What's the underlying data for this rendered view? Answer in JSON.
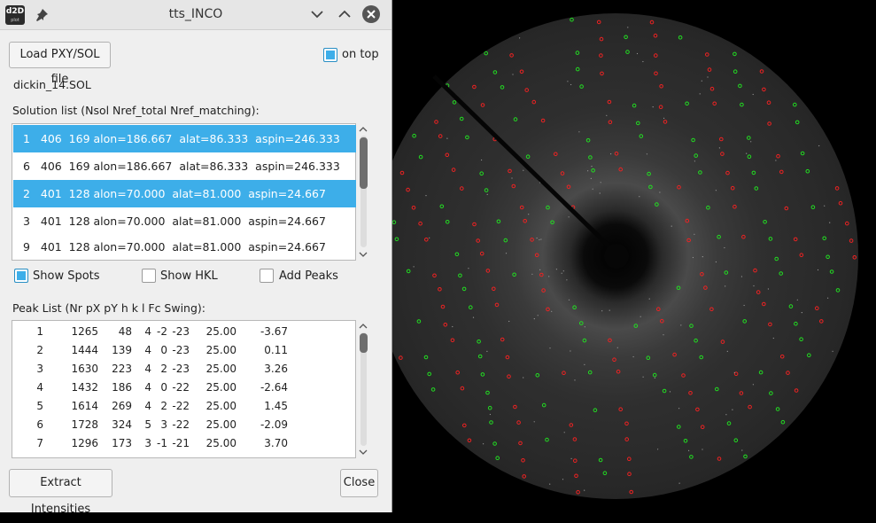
{
  "window": {
    "title": "tts_INCO",
    "app_icon_text": "d2D",
    "app_icon_subtext": "plot"
  },
  "toolbar": {
    "load_label": "Load PXY/SOL file",
    "on_top_label": "on top",
    "on_top_checked": true
  },
  "file": {
    "name": "dickin_14.SOL"
  },
  "solutions": {
    "header": "Solution list (Nsol Nref_total Nref_matching):",
    "rows": [
      {
        "text": "1   406  169 alon=186.667  alat=86.333  aspin=246.333",
        "selected": true
      },
      {
        "text": "6   406  169 alon=186.667  alat=86.333  aspin=246.333",
        "selected": false
      },
      {
        "text": "2   401  128 alon=70.000  alat=81.000  aspin=24.667",
        "selected": true
      },
      {
        "text": "3   401  128 alon=70.000  alat=81.000  aspin=24.667",
        "selected": false
      },
      {
        "text": "9   401  128 alon=70.000  alat=81.000  aspin=24.667",
        "selected": false
      }
    ]
  },
  "options": {
    "show_spots": {
      "label": "Show Spots",
      "checked": true
    },
    "show_hkl": {
      "label": "Show HKL",
      "checked": false
    },
    "add_peaks": {
      "label": "Add Peaks",
      "checked": false
    }
  },
  "peaks": {
    "header": "Peak List (Nr pX pY h k l Fc Swing):",
    "rows": [
      {
        "nr": "1",
        "px": "1265",
        "py": "48",
        "h": "4",
        "k": "-2",
        "l": "-23",
        "fc": "25.00",
        "swing": "-3.67"
      },
      {
        "nr": "2",
        "px": "1444",
        "py": "139",
        "h": "4",
        "k": "0",
        "l": "-23",
        "fc": "25.00",
        "swing": "0.11"
      },
      {
        "nr": "3",
        "px": "1630",
        "py": "223",
        "h": "4",
        "k": "2",
        "l": "-23",
        "fc": "25.00",
        "swing": "3.26"
      },
      {
        "nr": "4",
        "px": "1432",
        "py": "186",
        "h": "4",
        "k": "0",
        "l": "-22",
        "fc": "25.00",
        "swing": "-2.64"
      },
      {
        "nr": "5",
        "px": "1614",
        "py": "269",
        "h": "4",
        "k": "2",
        "l": "-22",
        "fc": "25.00",
        "swing": "1.45"
      },
      {
        "nr": "6",
        "px": "1728",
        "py": "324",
        "h": "5",
        "k": "3",
        "l": "-22",
        "fc": "25.00",
        "swing": "-2.09"
      },
      {
        "nr": "7",
        "px": "1296",
        "py": "173",
        "h": "3",
        "k": "-1",
        "l": "-21",
        "fc": "25.00",
        "swing": "3.70"
      }
    ]
  },
  "footer": {
    "extract_label": "Extract Intensities",
    "close_label": "Close"
  },
  "colors": {
    "selection": "#3daee9",
    "spot_observed": "#22dd22",
    "spot_calculated": "#ee2222"
  },
  "image": {
    "description_icon": "laue-diffraction-image"
  }
}
